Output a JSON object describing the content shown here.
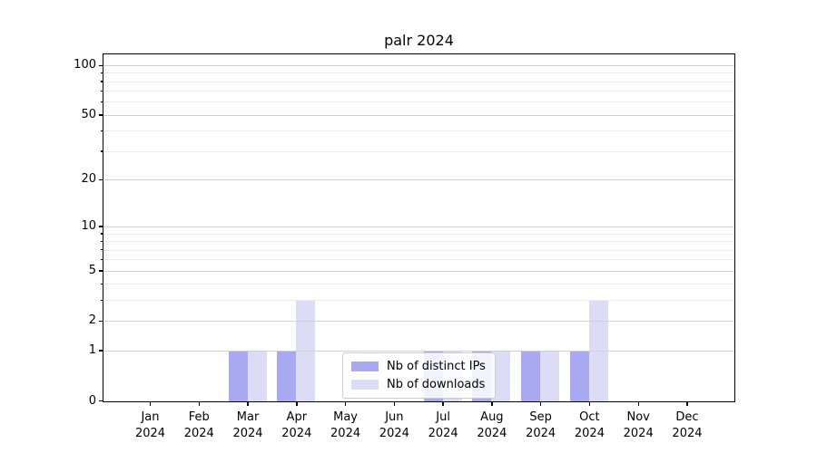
{
  "title": "palr 2024",
  "chart_data": {
    "type": "bar",
    "title": "palr 2024",
    "categories": [
      "Jan 2024",
      "Feb 2024",
      "Mar 2024",
      "Apr 2024",
      "May 2024",
      "Jun 2024",
      "Jul 2024",
      "Aug 2024",
      "Sep 2024",
      "Oct 2024",
      "Nov 2024",
      "Dec 2024"
    ],
    "series": [
      {
        "name": "Nb of distinct IPs",
        "color": "#a9a9f1",
        "values": [
          0,
          0,
          1,
          1,
          0,
          0,
          1,
          1,
          1,
          1,
          0,
          0
        ]
      },
      {
        "name": "Nb of downloads",
        "color": "#dcdcf7",
        "values": [
          0,
          0,
          1,
          3,
          0,
          0,
          1,
          1,
          1,
          3,
          0,
          0
        ]
      }
    ],
    "yscale": "log1p",
    "ylim": [
      0,
      115
    ],
    "y_ticks_major": [
      0,
      1,
      2,
      5,
      10,
      20,
      50,
      100
    ],
    "y_ticks_minor": [
      3,
      4,
      6,
      7,
      8,
      9,
      30,
      40,
      60,
      70,
      80,
      90
    ],
    "xlabel": "",
    "ylabel": "",
    "grid": "both",
    "legend_position": "lower center"
  },
  "colors": {
    "bar_distinct_ips": "#a9a9f1",
    "bar_downloads": "#dcdcf7",
    "grid_major": "#d2d2d2",
    "grid_minor": "#ebebeb",
    "spine": "#000000",
    "background": "#ffffff",
    "legend_border": "#cccccc"
  }
}
